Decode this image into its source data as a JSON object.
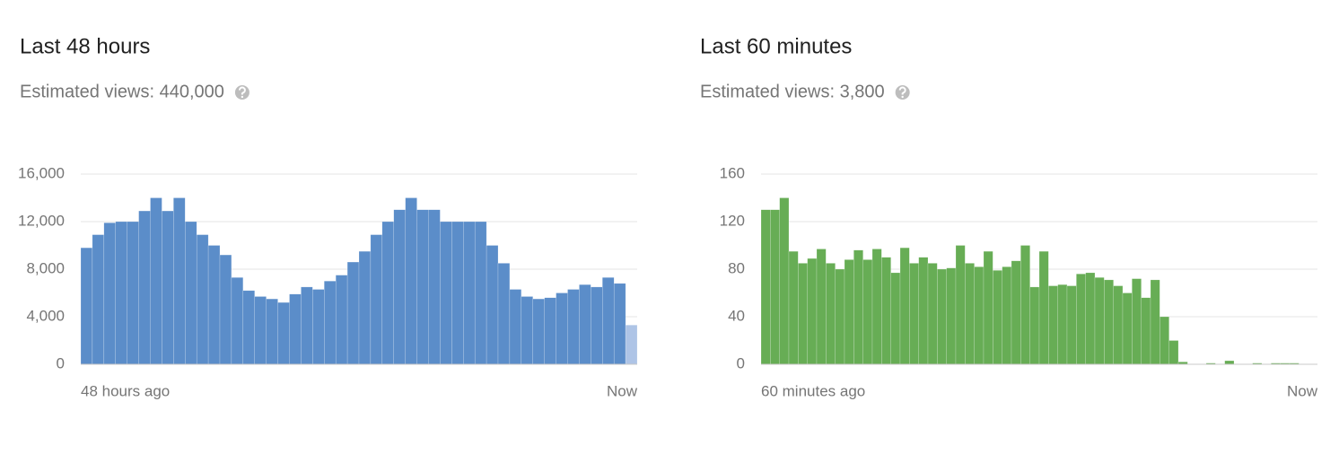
{
  "chart_data": [
    {
      "type": "bar",
      "title": "Last 48 hours",
      "subtitle": "Estimated views: 440,000",
      "x_axis_labels": {
        "start": "48 hours ago",
        "end": "Now"
      },
      "color": "#5b8dc9",
      "partial_color": "#aec4e6",
      "values": [
        9800,
        10900,
        11900,
        12000,
        12000,
        12900,
        14000,
        12900,
        14000,
        12000,
        10900,
        10000,
        9200,
        7300,
        6200,
        5700,
        5500,
        5200,
        5900,
        6500,
        6300,
        7000,
        7500,
        8600,
        9500,
        10900,
        12000,
        13000,
        14000,
        13000,
        13000,
        12000,
        12000,
        12000,
        12000,
        10000,
        8500,
        6300,
        5700,
        5500,
        5600,
        6000,
        6300,
        6700,
        6500,
        7300,
        6800,
        3300
      ],
      "ylim": [
        0,
        16000
      ],
      "yticks": [
        0,
        {
          "value": 4000,
          "label": "4,000"
        },
        {
          "value": 8000,
          "label": "8,000"
        },
        {
          "value": 12000,
          "label": "12,000"
        },
        {
          "value": 16000,
          "label": "16,000"
        }
      ],
      "grid": true
    },
    {
      "type": "bar",
      "title": "Last 60 minutes",
      "subtitle": "Estimated views: 3,800",
      "x_axis_labels": {
        "start": "60 minutes ago",
        "end": "Now"
      },
      "color": "#67ad55",
      "values": [
        130,
        130,
        140,
        95,
        85,
        89,
        97,
        85,
        80,
        88,
        96,
        88,
        97,
        90,
        77,
        98,
        85,
        90,
        85,
        80,
        81,
        100,
        85,
        82,
        95,
        79,
        82,
        87,
        100,
        65,
        95,
        66,
        67,
        66,
        76,
        77,
        73,
        71,
        66,
        60,
        72,
        56,
        71,
        40,
        20,
        2,
        0,
        0,
        1,
        0,
        3,
        0,
        0,
        1,
        0,
        1,
        1,
        1,
        0,
        0
      ],
      "ylim": [
        0,
        160
      ],
      "yticks": [
        0,
        40,
        80,
        120,
        160
      ],
      "grid": true
    }
  ]
}
